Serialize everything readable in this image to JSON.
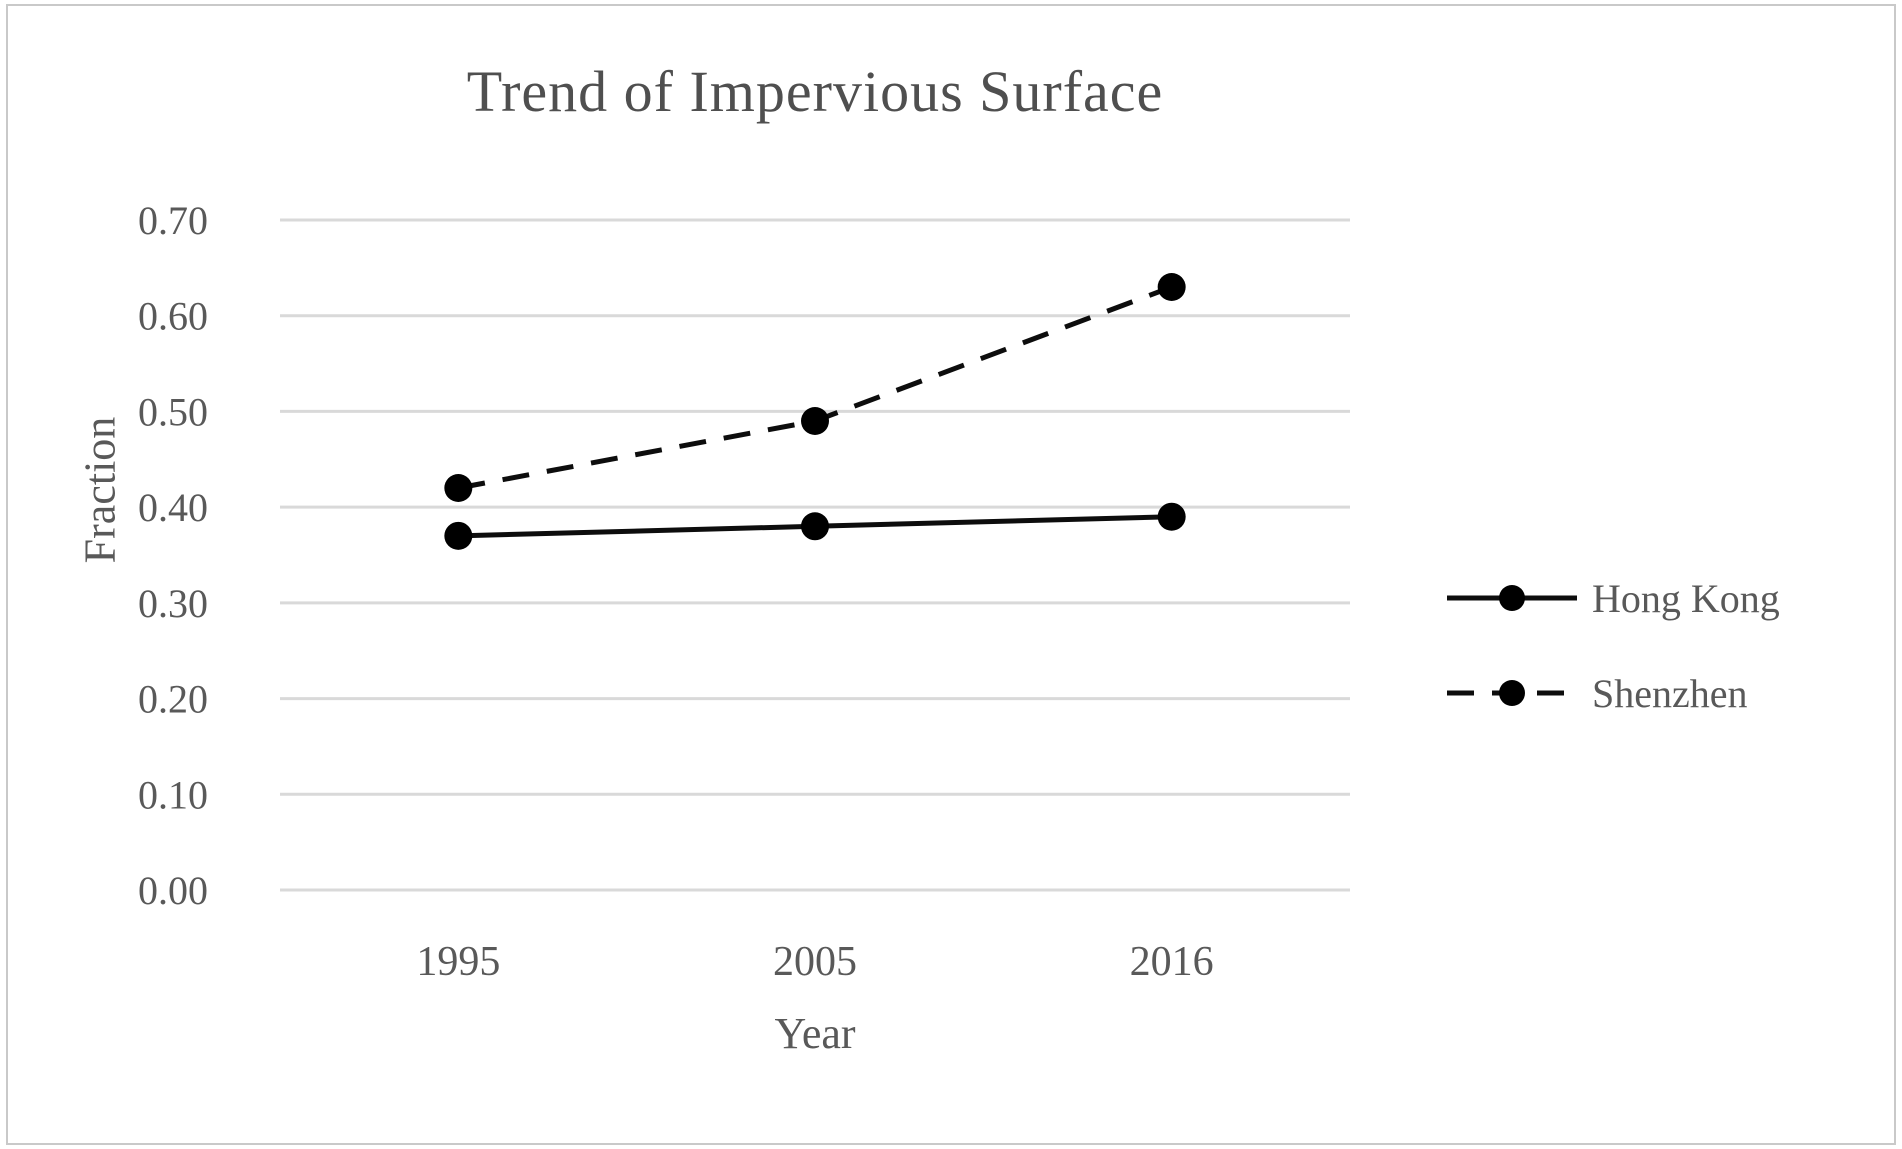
{
  "chart_data": {
    "type": "line",
    "title": "Trend of Impervious Surface",
    "xlabel": "Year",
    "ylabel": "Fraction",
    "categories": [
      "1995",
      "2005",
      "2016"
    ],
    "series": [
      {
        "name": "Hong Kong",
        "line_style": "solid",
        "marker": "circle",
        "values": [
          0.37,
          0.38,
          0.39
        ]
      },
      {
        "name": "Shenzhen",
        "line_style": "dashed",
        "marker": "circle",
        "values": [
          0.42,
          0.49,
          0.63
        ]
      }
    ],
    "ylim": [
      0.0,
      0.7
    ],
    "ytick_step": 0.1,
    "ytick_labels": [
      "0.00",
      "0.10",
      "0.20",
      "0.30",
      "0.40",
      "0.50",
      "0.60",
      "0.70"
    ],
    "grid": true,
    "legend_position": "right",
    "colors": {
      "series_line": "#0d0d0d",
      "marker_fill": "#000000",
      "grid_line": "#d9d9d9",
      "axis_text": "#595959",
      "title_text": "#4f4f4f",
      "background": "#ffffff",
      "frame_border": "#c9c9c9"
    }
  }
}
